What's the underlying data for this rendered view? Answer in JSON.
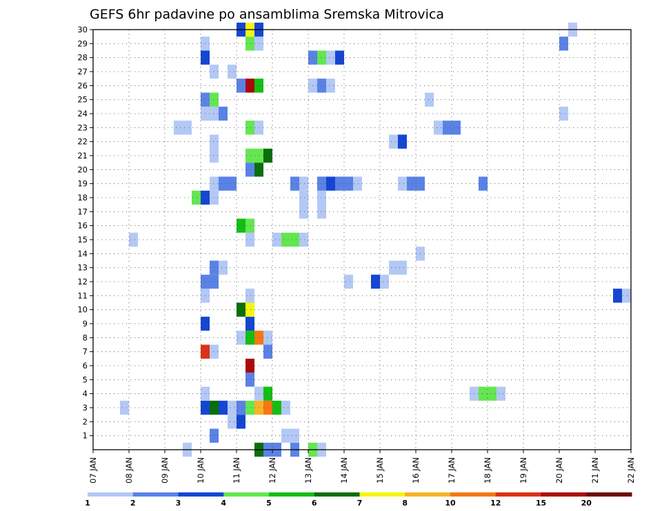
{
  "chart_data": {
    "type": "heatmap",
    "title": "GEFS 6hr padavine po ansamblima Sremska Mitrovica",
    "xlabel": "",
    "ylabel": "",
    "x_tick_labels": [
      "07 JAN",
      "08 JAN",
      "09 JAN",
      "10 JAN",
      "11 JAN",
      "12 JAN",
      "13 JAN",
      "14 JAN",
      "15 JAN",
      "16 JAN",
      "17 JAN",
      "18 JAN",
      "19 JAN",
      "20 JAN",
      "21 JAN",
      "22 JAN"
    ],
    "x_range_days": [
      0,
      15
    ],
    "y_tick_labels": [
      "1",
      "2",
      "3",
      "4",
      "5",
      "6",
      "7",
      "8",
      "9",
      "10",
      "11",
      "12",
      "13",
      "14",
      "15",
      "16",
      "17",
      "18",
      "19",
      "20",
      "21",
      "22",
      "23",
      "24",
      "25",
      "26",
      "27",
      "28",
      "29",
      "30"
    ],
    "y_range_members": [
      0,
      30
    ],
    "grid": true,
    "legend": {
      "placement": "bottom",
      "boundaries": [
        "1",
        "2",
        "3",
        "4",
        "5",
        "6",
        "7",
        "8",
        "10",
        "12",
        "15",
        "20"
      ],
      "colors": [
        "#b4c8f5",
        "#5a82e6",
        "#1446d2",
        "#64e650",
        "#14be14",
        "#0a6e0a",
        "#f5f514",
        "#f5b428",
        "#f57814",
        "#dc3214",
        "#aa0a0a",
        "#6e0505"
      ]
    },
    "cells": [
      [
        4.5,
        0,
        "#0a6e0a"
      ],
      [
        4.75,
        0,
        "#5a82e6"
      ],
      [
        5.0,
        0,
        "#5a82e6"
      ],
      [
        5.5,
        0,
        "#5a82e6"
      ],
      [
        6.0,
        0,
        "#64e650"
      ],
      [
        6.25,
        0,
        "#b4c8f5"
      ],
      [
        2.5,
        0,
        "#b4c8f5"
      ],
      [
        3.25,
        1,
        "#5a82e6"
      ],
      [
        5.25,
        1,
        "#b4c8f5"
      ],
      [
        5.5,
        1,
        "#b4c8f5"
      ],
      [
        3.75,
        2,
        "#b4c8f5"
      ],
      [
        4.0,
        2,
        "#1446d2"
      ],
      [
        0.75,
        3,
        "#b4c8f5"
      ],
      [
        3.0,
        3,
        "#1446d2"
      ],
      [
        3.25,
        3,
        "#0a6e0a"
      ],
      [
        3.5,
        3,
        "#1446d2"
      ],
      [
        3.75,
        3,
        "#b4c8f5"
      ],
      [
        4.0,
        3,
        "#5a82e6"
      ],
      [
        4.25,
        3,
        "#64e650"
      ],
      [
        4.5,
        3,
        "#f5b428"
      ],
      [
        4.75,
        3,
        "#f57814"
      ],
      [
        5.0,
        3,
        "#14be14"
      ],
      [
        5.25,
        3,
        "#b4c8f5"
      ],
      [
        3.0,
        4,
        "#b4c8f5"
      ],
      [
        4.5,
        4,
        "#b4c8f5"
      ],
      [
        4.75,
        4,
        "#14be14"
      ],
      [
        10.5,
        4,
        "#b4c8f5"
      ],
      [
        10.75,
        4,
        "#64e650"
      ],
      [
        11.0,
        4,
        "#64e650"
      ],
      [
        11.25,
        4,
        "#b4c8f5"
      ],
      [
        4.25,
        5,
        "#5a82e6"
      ],
      [
        4.25,
        6,
        "#aa0a0a"
      ],
      [
        3.0,
        7,
        "#dc3214"
      ],
      [
        3.25,
        7,
        "#b4c8f5"
      ],
      [
        4.75,
        7,
        "#5a82e6"
      ],
      [
        4.0,
        8,
        "#b4c8f5"
      ],
      [
        4.25,
        8,
        "#14be14"
      ],
      [
        4.5,
        8,
        "#f57814"
      ],
      [
        4.75,
        8,
        "#b4c8f5"
      ],
      [
        3.0,
        9,
        "#1446d2"
      ],
      [
        4.25,
        9,
        "#1446d2"
      ],
      [
        4.0,
        10,
        "#0a6e0a"
      ],
      [
        4.25,
        10,
        "#f5f514"
      ],
      [
        3.0,
        11,
        "#b4c8f5"
      ],
      [
        4.25,
        11,
        "#b4c8f5"
      ],
      [
        14.5,
        11,
        "#1446d2"
      ],
      [
        14.75,
        11,
        "#b4c8f5"
      ],
      [
        3.0,
        12,
        "#5a82e6"
      ],
      [
        3.25,
        12,
        "#5a82e6"
      ],
      [
        7.0,
        12,
        "#b4c8f5"
      ],
      [
        7.75,
        12,
        "#1446d2"
      ],
      [
        8.0,
        12,
        "#b4c8f5"
      ],
      [
        3.25,
        13,
        "#5a82e6"
      ],
      [
        3.5,
        13,
        "#b4c8f5"
      ],
      [
        8.25,
        13,
        "#b4c8f5"
      ],
      [
        8.5,
        13,
        "#b4c8f5"
      ],
      [
        9.0,
        14,
        "#b4c8f5"
      ],
      [
        1.0,
        15,
        "#b4c8f5"
      ],
      [
        4.25,
        15,
        "#b4c8f5"
      ],
      [
        5.0,
        15,
        "#b4c8f5"
      ],
      [
        5.25,
        15,
        "#64e650"
      ],
      [
        5.5,
        15,
        "#64e650"
      ],
      [
        5.75,
        15,
        "#b4c8f5"
      ],
      [
        4.0,
        16,
        "#14be14"
      ],
      [
        4.25,
        16,
        "#64e650"
      ],
      [
        5.75,
        17,
        "#b4c8f5"
      ],
      [
        6.25,
        17,
        "#b4c8f5"
      ],
      [
        2.75,
        18,
        "#64e650"
      ],
      [
        3.0,
        18,
        "#1446d2"
      ],
      [
        3.25,
        18,
        "#b4c8f5"
      ],
      [
        5.75,
        18,
        "#b4c8f5"
      ],
      [
        6.25,
        18,
        "#b4c8f5"
      ],
      [
        3.25,
        19,
        "#b4c8f5"
      ],
      [
        3.5,
        19,
        "#5a82e6"
      ],
      [
        3.75,
        19,
        "#5a82e6"
      ],
      [
        5.5,
        19,
        "#5a82e6"
      ],
      [
        5.75,
        19,
        "#b4c8f5"
      ],
      [
        6.25,
        19,
        "#5a82e6"
      ],
      [
        6.5,
        19,
        "#1446d2"
      ],
      [
        6.75,
        19,
        "#5a82e6"
      ],
      [
        7.0,
        19,
        "#5a82e6"
      ],
      [
        7.25,
        19,
        "#b4c8f5"
      ],
      [
        8.5,
        19,
        "#b4c8f5"
      ],
      [
        8.75,
        19,
        "#5a82e6"
      ],
      [
        9.0,
        19,
        "#5a82e6"
      ],
      [
        10.75,
        19,
        "#5a82e6"
      ],
      [
        4.25,
        20,
        "#5a82e6"
      ],
      [
        4.5,
        20,
        "#0a6e0a"
      ],
      [
        3.25,
        21,
        "#b4c8f5"
      ],
      [
        4.25,
        21,
        "#64e650"
      ],
      [
        4.5,
        21,
        "#64e650"
      ],
      [
        4.75,
        21,
        "#0a6e0a"
      ],
      [
        3.25,
        22,
        "#b4c8f5"
      ],
      [
        8.25,
        22,
        "#b4c8f5"
      ],
      [
        8.5,
        22,
        "#1446d2"
      ],
      [
        2.25,
        23,
        "#b4c8f5"
      ],
      [
        2.5,
        23,
        "#b4c8f5"
      ],
      [
        4.25,
        23,
        "#64e650"
      ],
      [
        4.5,
        23,
        "#b4c8f5"
      ],
      [
        9.5,
        23,
        "#b4c8f5"
      ],
      [
        9.75,
        23,
        "#5a82e6"
      ],
      [
        10.0,
        23,
        "#5a82e6"
      ],
      [
        3.0,
        24,
        "#b4c8f5"
      ],
      [
        3.25,
        24,
        "#b4c8f5"
      ],
      [
        3.5,
        24,
        "#5a82e6"
      ],
      [
        13.0,
        24,
        "#b4c8f5"
      ],
      [
        3.0,
        25,
        "#5a82e6"
      ],
      [
        3.25,
        25,
        "#64e650"
      ],
      [
        9.25,
        25,
        "#b4c8f5"
      ],
      [
        4.0,
        26,
        "#5a82e6"
      ],
      [
        4.25,
        26,
        "#aa0a0a"
      ],
      [
        4.5,
        26,
        "#14be14"
      ],
      [
        6.0,
        26,
        "#b4c8f5"
      ],
      [
        6.25,
        26,
        "#5a82e6"
      ],
      [
        6.5,
        26,
        "#b4c8f5"
      ],
      [
        3.25,
        27,
        "#b4c8f5"
      ],
      [
        3.75,
        27,
        "#b4c8f5"
      ],
      [
        3.0,
        28,
        "#1446d2"
      ],
      [
        6.0,
        28,
        "#5a82e6"
      ],
      [
        6.25,
        28,
        "#64e650"
      ],
      [
        6.5,
        28,
        "#b4c8f5"
      ],
      [
        6.75,
        28,
        "#1446d2"
      ],
      [
        3.0,
        29,
        "#b4c8f5"
      ],
      [
        4.25,
        29,
        "#64e650"
      ],
      [
        4.5,
        29,
        "#b4c8f5"
      ],
      [
        13.0,
        29,
        "#5a82e6"
      ],
      [
        4.0,
        30,
        "#1446d2"
      ],
      [
        4.25,
        30,
        "#f5f514"
      ],
      [
        4.5,
        30,
        "#1446d2"
      ],
      [
        13.25,
        30,
        "#b4c8f5"
      ]
    ]
  }
}
